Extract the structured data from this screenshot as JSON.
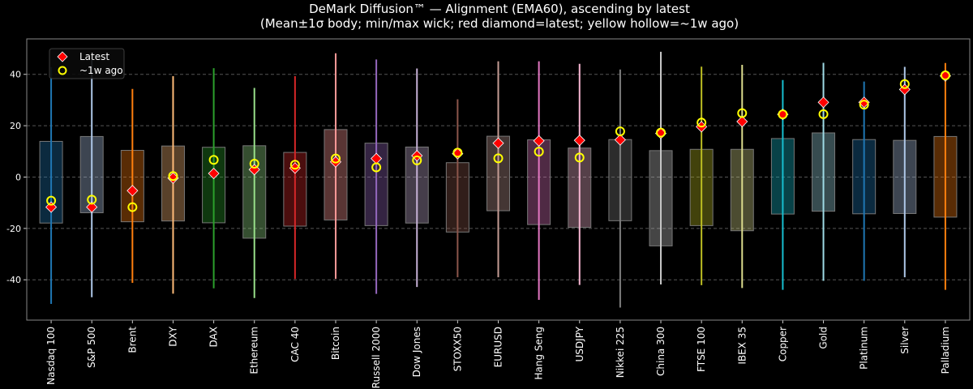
{
  "chart_data": {
    "type": "box",
    "title": "DeMark Diffusion™ — Alignment (EMA60), ascending by latest",
    "subtitle": "(Mean±1σ body; min/max wick; red diamond=latest; yellow hollow=~1w ago)",
    "xlabel": "",
    "ylabel": "",
    "ylim": [
      -55.7,
      53.8
    ],
    "yticks": [
      -40,
      -20,
      0,
      20,
      40
    ],
    "grid": "horizontal dashed",
    "legend": {
      "placement": "top-left",
      "entries": [
        "Latest",
        "~1w ago"
      ]
    },
    "marker_colors": {
      "latest": "#ff0000",
      "week_ago": "#ffff00"
    },
    "categories": [
      "Nasdaq 100",
      "S&P 500",
      "Brent",
      "DXY",
      "DAX",
      "Ethereum",
      "CAC 40",
      "Bitcoin",
      "Russell 2000",
      "Dow Jones",
      "STOXX50",
      "EURUSD",
      "Hang Seng",
      "USDJPY",
      "Nikkei 225",
      "China 300",
      "FTSE 100",
      "IBEX 35",
      "Copper",
      "Gold",
      "Platinum",
      "Silver",
      "Palladium"
    ],
    "colors": [
      "#1f77b4",
      "#aec7e8",
      "#ff7f0e",
      "#ffbb78",
      "#2ca02c",
      "#98df8a",
      "#d62728",
      "#ff9896",
      "#9467bd",
      "#c5b0d5",
      "#8c564b",
      "#c49c94",
      "#e377c2",
      "#f7b6d2",
      "#7f7f7f",
      "#c7c7c7",
      "#bcbd22",
      "#dbdb8d",
      "#17becf",
      "#9edae5",
      "#1f77b4",
      "#aec7e8",
      "#ff7f0e"
    ],
    "body_upper": [
      13.9,
      15.8,
      10.4,
      12.1,
      11.6,
      12.2,
      9.6,
      18.5,
      13.2,
      11.7,
      5.6,
      15.9,
      14.5,
      11.3,
      14.6,
      10.3,
      10.8,
      10.8,
      15.0,
      17.2,
      14.6,
      14.3,
      15.8
    ],
    "body_lower": [
      -17.9,
      -13.9,
      -17.4,
      -17.1,
      -17.8,
      -23.8,
      -19.1,
      -16.7,
      -18.9,
      -17.9,
      -21.4,
      -13.1,
      -18.5,
      -19.6,
      -17.0,
      -26.8,
      -18.9,
      -20.9,
      -14.4,
      -13.3,
      -14.3,
      -14.2,
      -15.6
    ],
    "max": [
      42.8,
      46.4,
      34.3,
      39.3,
      42.4,
      34.7,
      39.3,
      48.2,
      45.8,
      42.3,
      30.3,
      45.1,
      45.1,
      44.1,
      41.9,
      48.8,
      43.0,
      43.7,
      37.8,
      44.5,
      37.2,
      42.9,
      44.4
    ],
    "min": [
      -49.4,
      -46.8,
      -41.2,
      -45.4,
      -43.3,
      -47.1,
      -39.7,
      -39.6,
      -45.5,
      -42.8,
      -39.0,
      -39.0,
      -47.8,
      -42.0,
      -50.8,
      -41.8,
      -42.1,
      -43.2,
      -43.9,
      -40.4,
      -40.4,
      -39.0,
      -43.9
    ],
    "latest": [
      -11.7,
      -11.7,
      -5.3,
      -0.4,
      1.4,
      2.9,
      3.5,
      5.9,
      7.2,
      8.3,
      9.1,
      13.2,
      14.1,
      14.3,
      14.5,
      17.0,
      19.6,
      21.6,
      24.4,
      29.1,
      29.1,
      34.1,
      39.4
    ],
    "week_ago": [
      -9.2,
      -8.8,
      -11.7,
      0.4,
      6.7,
      5.2,
      4.8,
      7.2,
      3.8,
      6.5,
      9.5,
      7.3,
      9.9,
      7.6,
      17.8,
      17.3,
      21.2,
      24.9,
      24.4,
      24.5,
      28.2,
      36.2,
      39.6
    ]
  }
}
